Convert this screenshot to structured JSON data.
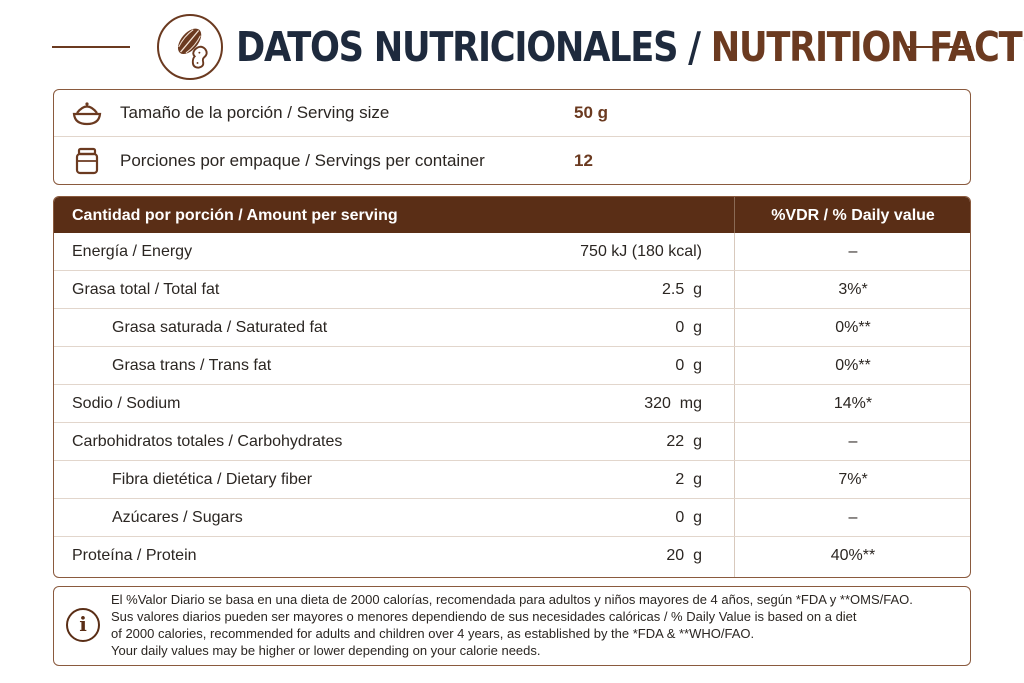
{
  "header": {
    "title_es": "DATOS NUTRICIONALES",
    "separator": "/",
    "title_en": "NUTRITION FACTS",
    "logo_icon": "cacao-peanut-icon"
  },
  "colors": {
    "brown": "#5a2e16",
    "accent": "#6b3a20",
    "navy": "#1e2a3d"
  },
  "serving": [
    {
      "icon": "bowl-icon",
      "label": "Tamaño de la porción / Serving size",
      "value": "50 g"
    },
    {
      "icon": "jar-icon",
      "label": "Porciones por empaque / Servings per container",
      "value": "12"
    }
  ],
  "table": {
    "header_amount": "Cantidad por porción / Amount per serving",
    "header_dv": "%VDR / % Daily value",
    "rows": [
      {
        "name": "Energía / Energy",
        "amount": "750 kJ (180 kcal)",
        "dv": "–",
        "sub": false
      },
      {
        "name": "Grasa total / Total fat",
        "amount": "2.5  g",
        "dv": "3%*",
        "sub": false
      },
      {
        "name": "Grasa saturada / Saturated fat",
        "amount": "0  g",
        "dv": "0%**",
        "sub": true
      },
      {
        "name": "Grasa trans / Trans fat",
        "amount": "0  g",
        "dv": "0%**",
        "sub": true
      },
      {
        "name": "Sodio / Sodium",
        "amount": "320  mg",
        "dv": "14%*",
        "sub": false
      },
      {
        "name": "Carbohidratos totales / Carbohydrates",
        "amount": "22  g",
        "dv": "–",
        "sub": false
      },
      {
        "name": "Fibra dietética / Dietary fiber",
        "amount": "2  g",
        "dv": "7%*",
        "sub": true
      },
      {
        "name": "Azúcares / Sugars",
        "amount": "0  g",
        "dv": "–",
        "sub": true
      },
      {
        "name": "Proteína / Protein",
        "amount": "20  g",
        "dv": "40%**",
        "sub": false
      }
    ]
  },
  "note": {
    "icon": "info-icon",
    "icon_glyph": "i",
    "lines": [
      "El %Valor Diario se basa en una dieta de 2000 calorías, recomendada para adultos y niños mayores de 4 años, según *FDA y **OMS/FAO.",
      "Sus valores diarios pueden ser mayores o menores dependiendo de sus necesidades calóricas / % Daily Value is based on a diet",
      "of 2000 calories, recommended for adults and children over 4 years, as established by the *FDA & **WHO/FAO.",
      "Your daily values may be higher or lower depending on your calorie needs."
    ]
  }
}
